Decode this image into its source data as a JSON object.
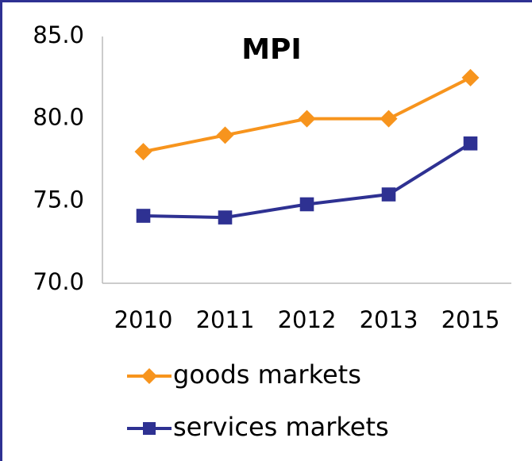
{
  "chart_data": {
    "type": "line",
    "title": "MPI",
    "categories": [
      "2010",
      "2011",
      "2012",
      "2013",
      "2015"
    ],
    "series": [
      {
        "name": "goods markets",
        "color": "#f7941d",
        "marker": "diamond",
        "values": [
          78.0,
          79.0,
          80.0,
          80.0,
          82.5
        ]
      },
      {
        "name": "services markets",
        "color": "#2e3192",
        "marker": "square",
        "values": [
          74.1,
          74.0,
          74.8,
          75.4,
          78.5
        ]
      }
    ],
    "ylim": [
      70,
      85
    ],
    "yticks": [
      {
        "value": 70,
        "label": "70.0"
      },
      {
        "value": 75,
        "label": "75.0"
      },
      {
        "value": 80,
        "label": "80.0"
      },
      {
        "value": 85,
        "label": "85.0"
      }
    ],
    "grid": false
  }
}
